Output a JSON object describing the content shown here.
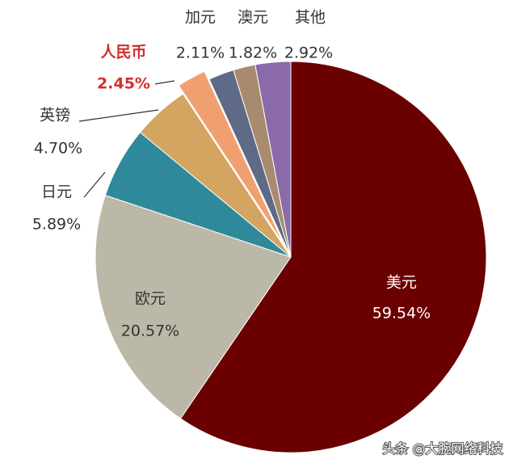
{
  "chart_data": {
    "type": "pie",
    "categories": [
      "美元",
      "欧元",
      "日元",
      "英镑",
      "人民币",
      "加元",
      "澳元",
      "其他"
    ],
    "values": [
      59.54,
      20.57,
      5.89,
      4.7,
      2.45,
      2.11,
      1.82,
      2.92
    ],
    "value_labels": [
      "59.54%",
      "20.57%",
      "5.89%",
      "4.70%",
      "2.45%",
      "2.11%",
      "1.82%",
      "2.92%"
    ],
    "colors": [
      "#6b0000",
      "#bcb8a8",
      "#2e8a9a",
      "#d4a461",
      "#f0a070",
      "#5e6a86",
      "#a88a6e",
      "#8a6aa8"
    ],
    "watermark": "头条 @大腕网络科技"
  }
}
